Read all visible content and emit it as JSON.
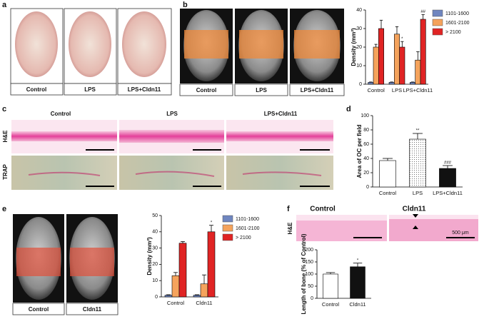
{
  "panels": {
    "a": {
      "letter": "a",
      "labels": [
        "Control",
        "LPS",
        "LPS+Cldn11"
      ]
    },
    "b": {
      "letter": "b",
      "labels": [
        "Control",
        "LPS",
        "LPS+Cldn11"
      ]
    },
    "c": {
      "letter": "c",
      "headers": [
        "Control",
        "LPS",
        "LPS+Cldn11"
      ],
      "rows": [
        "H&E",
        "TRAP"
      ]
    },
    "d": {
      "letter": "d"
    },
    "e": {
      "letter": "e",
      "labels": [
        "Control",
        "Cldn11"
      ]
    },
    "f": {
      "letter": "f",
      "headers": [
        "Control",
        "Cldn11"
      ],
      "row": "H&E",
      "scale": "500 μm"
    }
  },
  "chart_data": [
    {
      "type": "bar",
      "y_label": "Density (mm²)",
      "categories": [
        "Control",
        "LPS",
        "LPS+Cldn11"
      ],
      "series": [
        {
          "name": "1101-1600",
          "color": "#6f86c0",
          "values": [
            1,
            1,
            1
          ],
          "errors": [
            0.2,
            0.2,
            0.2
          ]
        },
        {
          "name": "1601-2100",
          "color": "#f5a35c",
          "values": [
            20,
            27,
            13
          ],
          "errors": [
            1.5,
            4,
            4.5
          ]
        },
        {
          "name": "> 2100",
          "color": "#e02424",
          "values": [
            30,
            20,
            35
          ],
          "errors": [
            4.5,
            3,
            2.5
          ]
        }
      ],
      "annotations": [
        {
          "series": 2,
          "category": 1,
          "text": "*"
        },
        {
          "series": 2,
          "category": 2,
          "text": "##"
        }
      ],
      "ylim": [
        0,
        40
      ],
      "yticks": [
        0,
        10,
        20,
        30,
        40
      ]
    },
    {
      "type": "bar",
      "y_label": "Area of OC per field",
      "categories": [
        "Control",
        "LPS",
        "LPS+Cldn11"
      ],
      "values": [
        37,
        67,
        26
      ],
      "errors": [
        3,
        8,
        4
      ],
      "colors": [
        "#ffffff",
        "#dcdcdc",
        "#111111"
      ],
      "annotations": [
        {
          "category": 1,
          "text": "**"
        },
        {
          "category": 2,
          "text": "###"
        }
      ],
      "ylim": [
        0,
        100
      ],
      "yticks": [
        0,
        20,
        40,
        60,
        80,
        100
      ]
    },
    {
      "type": "bar",
      "y_label": "Density (mm²)",
      "categories": [
        "Control",
        "Cldn11"
      ],
      "series": [
        {
          "name": "1101-1600",
          "color": "#6f86c0",
          "values": [
            1,
            1
          ],
          "errors": [
            0.3,
            0.3
          ]
        },
        {
          "name": "1601-2100",
          "color": "#f5a35c",
          "values": [
            13,
            8
          ],
          "errors": [
            2,
            5.5
          ]
        },
        {
          "name": "> 2100",
          "color": "#e02424",
          "values": [
            33,
            40
          ],
          "errors": [
            1,
            4
          ]
        }
      ],
      "annotations": [
        {
          "series": 2,
          "category": 1,
          "text": "*"
        }
      ],
      "ylim": [
        0,
        50
      ],
      "yticks": [
        0,
        10,
        20,
        30,
        40,
        50
      ]
    },
    {
      "type": "bar",
      "y_label": "Length of bone (% of Control)",
      "categories": [
        "Control",
        "Cldn11"
      ],
      "values": [
        100,
        130
      ],
      "errors": [
        6,
        15
      ],
      "colors": [
        "#ffffff",
        "#111111"
      ],
      "annotations": [
        {
          "category": 1,
          "text": "*"
        }
      ],
      "ylim": [
        0,
        200
      ],
      "yticks": [
        0,
        50,
        100,
        150,
        200
      ]
    }
  ]
}
